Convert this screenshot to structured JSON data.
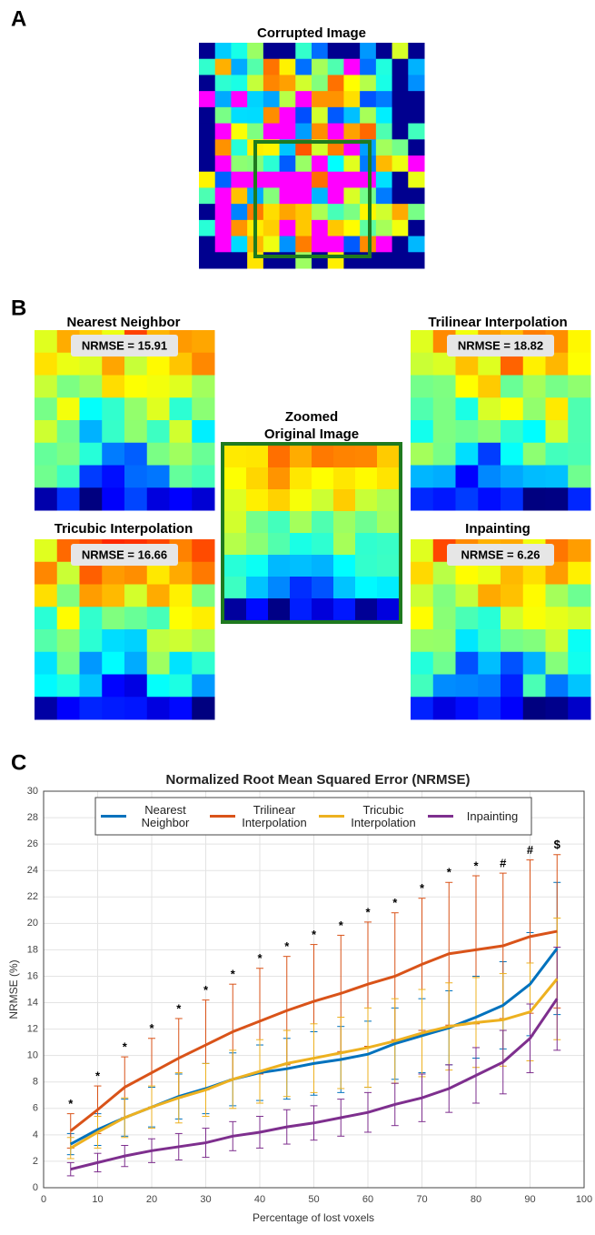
{
  "panel_a": {
    "label": "A",
    "title": "Corrupted Image"
  },
  "panel_b": {
    "label": "B",
    "images": [
      {
        "title": "Nearest Neighbor",
        "nrmse": "NRMSE = 15.91"
      },
      {
        "title": "Trilinear Interpolation",
        "nrmse": "NRMSE = 18.82"
      },
      {
        "title": "Tricubic Interpolation",
        "nrmse": "NRMSE = 16.66"
      },
      {
        "title": "Inpainting",
        "nrmse": "NRMSE = 6.26"
      }
    ],
    "center_title": [
      "Zoomed",
      "Original Image"
    ]
  },
  "panel_c": {
    "label": "C"
  },
  "chart_data": {
    "type": "line",
    "title": "Normalized Root Mean Squared Error (NRMSE)",
    "x_label": "Percentage of lost voxels",
    "y_label": "NRMSE (%)",
    "x": [
      5,
      10,
      15,
      20,
      25,
      30,
      35,
      40,
      45,
      50,
      55,
      60,
      65,
      70,
      75,
      80,
      85,
      90,
      95
    ],
    "series": [
      {
        "name": "Nearest Neighbor",
        "color": "#0072bd",
        "values": [
          3.3,
          4.4,
          5.3,
          6.1,
          6.9,
          7.5,
          8.2,
          8.7,
          9.0,
          9.4,
          9.7,
          10.1,
          10.9,
          11.5,
          12.1,
          12.9,
          13.8,
          15.4,
          18.1
        ],
        "errors": [
          0.8,
          1.2,
          1.4,
          1.5,
          1.7,
          1.9,
          2.0,
          2.1,
          2.3,
          2.4,
          2.5,
          2.5,
          2.7,
          2.8,
          2.8,
          3.1,
          3.3,
          3.9,
          5.0
        ]
      },
      {
        "name": "Trilinear Interpolation",
        "color": "#d95319",
        "values": [
          4.3,
          5.9,
          7.6,
          8.7,
          9.8,
          10.8,
          11.8,
          12.6,
          13.4,
          14.1,
          14.7,
          15.4,
          16.0,
          16.9,
          17.7,
          18.0,
          18.3,
          19.0,
          19.4
        ],
        "errors": [
          1.3,
          1.8,
          2.3,
          2.6,
          3.0,
          3.4,
          3.6,
          4.0,
          4.1,
          4.3,
          4.4,
          4.7,
          4.8,
          5.0,
          5.4,
          5.6,
          5.5,
          5.8,
          5.8
        ]
      },
      {
        "name": "Tricubic Interpolation",
        "color": "#edb120",
        "values": [
          3.0,
          4.2,
          5.3,
          6.1,
          6.8,
          7.4,
          8.2,
          8.8,
          9.4,
          9.8,
          10.2,
          10.6,
          11.1,
          11.7,
          12.2,
          12.5,
          12.7,
          13.3,
          15.8
        ],
        "errors": [
          0.8,
          1.2,
          1.5,
          1.6,
          1.9,
          2.0,
          2.2,
          2.4,
          2.5,
          2.6,
          2.7,
          3.0,
          3.2,
          3.3,
          3.3,
          3.4,
          3.5,
          3.7,
          4.6
        ]
      },
      {
        "name": "Inpainting",
        "color": "#7e2f8e",
        "values": [
          1.4,
          1.9,
          2.4,
          2.8,
          3.1,
          3.4,
          3.9,
          4.2,
          4.6,
          4.9,
          5.3,
          5.7,
          6.3,
          6.8,
          7.5,
          8.5,
          9.5,
          11.3,
          14.3
        ],
        "errors": [
          0.5,
          0.7,
          0.8,
          0.9,
          1.0,
          1.1,
          1.1,
          1.2,
          1.3,
          1.3,
          1.4,
          1.5,
          1.6,
          1.8,
          1.8,
          2.1,
          2.4,
          2.6,
          3.9
        ]
      }
    ],
    "markers": [
      "*",
      "*",
      "*",
      "*",
      "*",
      "*",
      "*",
      "*",
      "*",
      "*",
      "*",
      "*",
      "*",
      "*",
      "*",
      "*",
      "#",
      "#",
      "$"
    ],
    "xlim": [
      0,
      100
    ],
    "xticks": [
      0,
      10,
      20,
      30,
      40,
      50,
      60,
      70,
      80,
      90,
      100
    ],
    "ylim": [
      0,
      30
    ],
    "yticks": [
      0,
      2,
      4,
      6,
      8,
      10,
      12,
      14,
      16,
      18,
      20,
      22,
      24,
      26,
      28,
      30
    ],
    "grid": true,
    "legend": "top"
  }
}
